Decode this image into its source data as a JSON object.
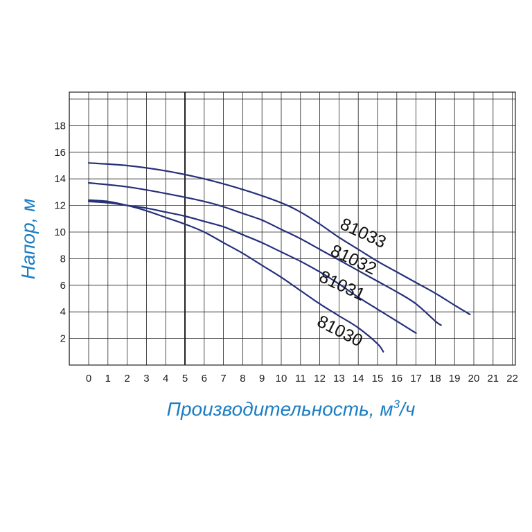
{
  "chart_data": {
    "type": "line",
    "title": "",
    "xlabel": "Производительность, м³/ч",
    "xlabel_parts": {
      "main": "Производительность, м",
      "sup": "3",
      "tail": "/ч"
    },
    "ylabel": "Напор, м",
    "x_ticks": [
      "0",
      "1",
      "2",
      "3",
      "4",
      "5",
      "6",
      "7",
      "8",
      "9",
      "10",
      "11",
      "12",
      "13",
      "14",
      "15",
      "16",
      "17",
      "18",
      "19",
      "20",
      "21",
      "22"
    ],
    "y_ticks": [
      "2",
      "4",
      "6",
      "8",
      "10",
      "12",
      "14",
      "16",
      "18"
    ],
    "xlim": [
      0,
      22
    ],
    "ylim": [
      0,
      20
    ],
    "grid": true,
    "highlight_x": 5,
    "line_color": "#26307a",
    "title_color": "#1c7ec2",
    "series": [
      {
        "name": "81033",
        "x": [
          0,
          2,
          4,
          6,
          8,
          10,
          11,
          12,
          13,
          14,
          15,
          16,
          17,
          18,
          19,
          19.8
        ],
        "y": [
          15.2,
          15.0,
          14.6,
          14.0,
          13.2,
          12.2,
          11.5,
          10.6,
          9.6,
          8.7,
          7.8,
          7.0,
          6.2,
          5.4,
          4.5,
          3.8
        ]
      },
      {
        "name": "81032",
        "x": [
          0,
          2,
          4,
          6,
          7,
          8,
          9,
          10,
          11,
          12,
          13,
          14,
          15,
          16,
          17,
          18,
          18.3
        ],
        "y": [
          13.7,
          13.4,
          12.9,
          12.3,
          11.9,
          11.4,
          10.9,
          10.2,
          9.5,
          8.7,
          7.9,
          7.1,
          6.3,
          5.5,
          4.6,
          3.3,
          3.0
        ]
      },
      {
        "name": "81031",
        "x": [
          0,
          1,
          2,
          3,
          4,
          5,
          6,
          7,
          8,
          9,
          10,
          11,
          12,
          13,
          14,
          15,
          16,
          17
        ],
        "y": [
          12.3,
          12.2,
          12.0,
          11.8,
          11.5,
          11.2,
          10.8,
          10.4,
          9.8,
          9.2,
          8.5,
          7.8,
          7.0,
          6.1,
          5.1,
          4.2,
          3.3,
          2.4
        ]
      },
      {
        "name": "81030",
        "x": [
          0,
          1,
          2,
          3,
          4,
          5,
          6,
          7,
          8,
          9,
          10,
          11,
          12,
          13,
          14,
          15,
          15.3
        ],
        "y": [
          12.4,
          12.3,
          12.0,
          11.6,
          11.1,
          10.6,
          10.0,
          9.2,
          8.4,
          7.5,
          6.6,
          5.6,
          4.6,
          3.7,
          2.8,
          1.6,
          1.0
        ]
      }
    ]
  }
}
